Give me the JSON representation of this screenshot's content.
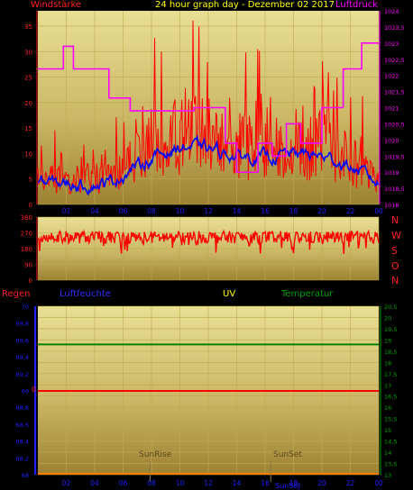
{
  "colors": {
    "background": "#000000",
    "bg_top": "#e6dc8f",
    "bg_bottom": "#9e8534",
    "grid": "#bfa94d",
    "wind": "#ff0000",
    "gust_avg": "#0000ff",
    "pressure": "#ff00ff",
    "direction": "#ff0000",
    "temperature": "#008000",
    "humidity": "#0000ff",
    "uv": "#ffff00",
    "rain": "#ff0000",
    "tick_blue": "#2020ff",
    "sun_line": "#8a7a3a"
  },
  "chart_data": [
    {
      "type": "line",
      "title": "24 hour graph day - Dezember 02 2017",
      "left_label": "Windstärke",
      "right_label": "Luftdruck",
      "x_ticks": [
        "02",
        "04",
        "06",
        "08",
        "10",
        "12",
        "14",
        "16",
        "18",
        "20",
        "22",
        "00"
      ],
      "y_left_ticks": [
        "0",
        "5",
        "10",
        "15",
        "20",
        "25",
        "30",
        "35"
      ],
      "y_left_range": [
        0,
        38
      ],
      "y_right_ticks": [
        "1018",
        "1018,5",
        "1019",
        "1019,5",
        "1020",
        "1020,5",
        "1021",
        "1021,5",
        "1022",
        "1022,5",
        "1023",
        "1023,5",
        "1024"
      ],
      "y_right_range": [
        1018,
        1024
      ],
      "series": [
        {
          "id": "wind",
          "color": "#ff0000",
          "axis": "left"
        },
        {
          "id": "avg",
          "color": "#0000ff",
          "axis": "left"
        },
        {
          "id": "pressure",
          "color": "#ff00ff",
          "axis": "right"
        }
      ]
    },
    {
      "type": "line",
      "y_ticks": [
        "0",
        "90",
        "180",
        "270",
        "360"
      ],
      "y_range": [
        0,
        360
      ],
      "right_letters": [
        "N",
        "W",
        "S",
        "O",
        "N"
      ],
      "series": [
        {
          "id": "direction",
          "color": "#ff0000"
        }
      ]
    },
    {
      "type": "line",
      "labels": {
        "rain": "Regen",
        "humidity": "Luftfeuchte",
        "uv": "UV",
        "temperature": "Temperatur"
      },
      "x_ticks": [
        "02",
        "04",
        "06",
        "08",
        "10",
        "12",
        "14",
        "16",
        "18",
        "20",
        "22",
        "00"
      ],
      "y_left_ticks": [
        "68",
        "68,2",
        "68,4",
        "68,6",
        "68,8",
        "69",
        "69,2",
        "69,4",
        "69,6",
        "69,8",
        "70"
      ],
      "y_left_range": [
        68,
        70
      ],
      "y_right_ticks": [
        "13",
        "13,5",
        "14",
        "14,5",
        "15",
        "15,5",
        "16",
        "16,5",
        "17",
        "17,5",
        "18",
        "18,5",
        "19",
        "19,5",
        "20",
        "20,5"
      ],
      "y_right_range": [
        13,
        20.5
      ],
      "rain_label": "0",
      "temperature_value": 18.8,
      "rain_value": 0,
      "sun_events": [
        {
          "label": "SunRise",
          "hour": 7.9
        },
        {
          "label": "SunSet",
          "hour": 16.4
        }
      ],
      "x_bottom_label_extra": "SunSet"
    }
  ]
}
